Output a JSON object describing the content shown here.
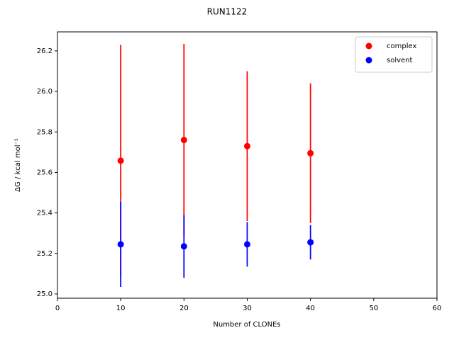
{
  "chart_data": {
    "type": "scatter",
    "title": "RUN1122",
    "x_label": "Number of CLONEs",
    "y_label": "ΔG / kcal mol⁻¹",
    "x": [
      10,
      20,
      30,
      40
    ],
    "series": [
      {
        "name": "complex",
        "color": "#ff0000",
        "values": [
          25.658,
          25.76,
          25.73,
          25.695
        ],
        "errors": [
          0.572,
          0.475,
          0.37,
          0.345
        ]
      },
      {
        "name": "solvent",
        "color": "#0000ff",
        "values": [
          25.245,
          25.235,
          25.245,
          25.255
        ],
        "errors": [
          0.21,
          0.155,
          0.11,
          0.085
        ]
      }
    ],
    "xlim": [
      0,
      60
    ],
    "xticks": [
      0,
      10,
      20,
      30,
      40,
      50,
      60
    ],
    "ylim": [
      24.979,
      26.294
    ],
    "yticks": [
      {
        "value": 25.0,
        "label": "25.0"
      },
      {
        "value": 25.2,
        "label": "25.2"
      },
      {
        "value": 25.4,
        "label": "25.4"
      },
      {
        "value": 25.6,
        "label": "25.6"
      },
      {
        "value": 25.8,
        "label": "25.8"
      },
      {
        "value": 26.0,
        "label": "26.0"
      },
      {
        "value": 26.2,
        "label": "26.2"
      }
    ],
    "grid": false,
    "legend": "upper right"
  }
}
